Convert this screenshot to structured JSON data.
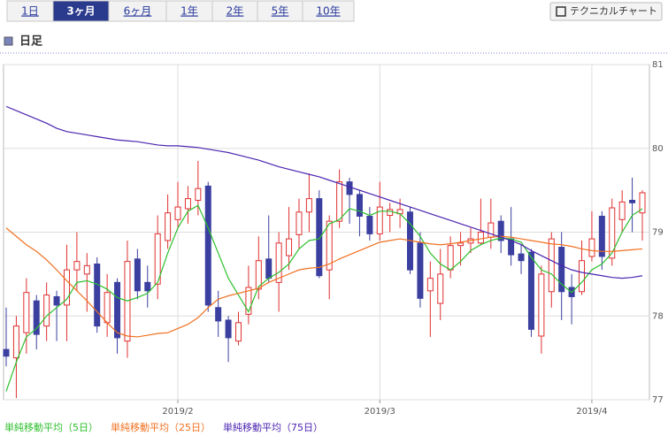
{
  "tabs": [
    "1日",
    "3ヶ月",
    "6ヶ月",
    "1年",
    "2年",
    "5年",
    "10年"
  ],
  "active_tab": 1,
  "technical_button": "テクニカルチャート",
  "section_title": "日足",
  "chart_data": {
    "type": "candlestick",
    "categories": [
      null,
      null,
      null,
      null,
      null,
      null,
      null,
      null,
      null,
      null,
      null,
      null,
      null,
      null,
      null,
      null,
      null,
      "2019/2",
      null,
      null,
      null,
      null,
      null,
      null,
      null,
      null,
      null,
      null,
      null,
      null,
      null,
      null,
      null,
      null,
      null,
      null,
      null,
      "2019/3",
      null,
      null,
      null,
      null,
      null,
      null,
      null,
      null,
      null,
      null,
      null,
      null,
      null,
      null,
      null,
      null,
      null,
      null,
      null,
      null,
      "2019/4",
      null,
      null,
      null,
      null,
      null
    ],
    "open": [
      77.6,
      77.5,
      77.8,
      78.18,
      77.88,
      78.23,
      78.13,
      78.55,
      78.5,
      78.62,
      77.92,
      78.4,
      77.7,
      78.68,
      78.4,
      78.38,
      78.9,
      79.15,
      79.28,
      79.38,
      79.55,
      78.1,
      77.95,
      77.7,
      78.02,
      78.32,
      78.68,
      78.4,
      78.72,
      78.97,
      79.24,
      79.4,
      78.55,
      79.13,
      79.6,
      79.45,
      79.19,
      78.98,
      79.2,
      79.22,
      79.24,
      78.87,
      78.3,
      78.15,
      78.55,
      78.84,
      78.87,
      78.87,
      78.94,
      79.13,
      78.92,
      78.74,
      78.76,
      77.76,
      78.29,
      78.82,
      78.34,
      78.29,
      78.71,
      79.19,
      78.69,
      79.15,
      79.38,
      79.23
    ],
    "high": [
      78.1,
      78.0,
      78.45,
      78.25,
      78.4,
      78.3,
      78.85,
      79.0,
      78.75,
      78.7,
      78.5,
      78.45,
      78.9,
      78.8,
      78.6,
      79.2,
      79.45,
      79.6,
      79.55,
      79.85,
      79.6,
      78.3,
      78.0,
      78.05,
      78.6,
      78.95,
      79.2,
      79.0,
      79.3,
      79.4,
      79.7,
      79.5,
      79.2,
      79.75,
      79.65,
      79.5,
      79.3,
      79.6,
      79.35,
      79.4,
      79.3,
      79.0,
      78.65,
      78.8,
      78.95,
      79.0,
      79.05,
      79.4,
      79.4,
      79.2,
      79.3,
      78.85,
      78.8,
      78.6,
      79.0,
      79.0,
      78.5,
      78.9,
      79.25,
      79.25,
      79.4,
      79.5,
      79.65,
      79.5
    ],
    "low": [
      77.4,
      77.02,
      77.55,
      77.6,
      77.7,
      77.7,
      77.7,
      78.3,
      78.05,
      77.8,
      77.75,
      77.55,
      77.5,
      78.2,
      78.1,
      78.2,
      78.8,
      79.05,
      79.1,
      79.2,
      78.05,
      77.75,
      77.45,
      77.65,
      77.9,
      78.2,
      78.4,
      78.05,
      78.55,
      78.8,
      79.0,
      78.45,
      78.2,
      79.05,
      79.1,
      78.95,
      78.9,
      78.9,
      79.0,
      79.05,
      78.5,
      78.1,
      77.75,
      77.95,
      78.45,
      78.6,
      78.75,
      78.85,
      78.8,
      78.75,
      78.6,
      78.5,
      77.75,
      77.55,
      78.1,
      77.95,
      77.9,
      78.25,
      78.65,
      78.55,
      78.6,
      79.0,
      79.0,
      78.9
    ],
    "close": [
      77.52,
      77.88,
      78.28,
      77.78,
      78.25,
      78.13,
      78.55,
      78.65,
      78.6,
      77.88,
      78.28,
      77.74,
      78.65,
      78.3,
      78.3,
      78.98,
      79.23,
      79.3,
      79.4,
      79.52,
      78.13,
      77.94,
      77.74,
      77.92,
      78.34,
      78.66,
      78.45,
      78.87,
      78.92,
      79.24,
      79.4,
      78.48,
      79.13,
      79.6,
      79.45,
      79.19,
      78.98,
      79.3,
      79.27,
      79.27,
      78.55,
      78.21,
      78.45,
      78.5,
      78.84,
      78.87,
      78.92,
      79.0,
      79.11,
      78.9,
      78.73,
      78.66,
      77.84,
      78.5,
      78.92,
      78.29,
      78.23,
      78.66,
      78.92,
      78.71,
      79.29,
      79.36,
      79.35,
      79.47
    ],
    "up_color": "#e03030",
    "down_color": "#3a3fa0",
    "series": [
      {
        "name": "単純移動平均（5日）",
        "color": "#2cbf2c",
        "values": [
          77.1,
          77.45,
          77.75,
          77.85,
          78.0,
          78.1,
          78.2,
          78.4,
          78.42,
          78.38,
          78.32,
          78.22,
          78.18,
          78.22,
          78.27,
          78.4,
          78.75,
          79.05,
          79.25,
          79.32,
          79.05,
          78.75,
          78.45,
          78.25,
          78.05,
          78.35,
          78.45,
          78.52,
          78.62,
          78.8,
          78.9,
          78.92,
          79.1,
          79.15,
          79.28,
          79.25,
          79.2,
          79.25,
          79.25,
          79.22,
          79.1,
          78.95,
          78.75,
          78.62,
          78.55,
          78.65,
          78.78,
          78.85,
          78.9,
          78.93,
          78.92,
          78.88,
          78.7,
          78.55,
          78.5,
          78.38,
          78.28,
          78.4,
          78.55,
          78.62,
          78.75,
          79.0,
          79.2,
          79.28
        ]
      },
      {
        "name": "単純移動平均（25日）",
        "color": "#f07020",
        "values": [
          79.05,
          78.95,
          78.85,
          78.77,
          78.67,
          78.55,
          78.42,
          78.3,
          78.18,
          78.05,
          77.92,
          77.8,
          77.76,
          77.75,
          77.77,
          77.79,
          77.8,
          77.85,
          77.9,
          77.98,
          78.1,
          78.2,
          78.24,
          78.27,
          78.3,
          78.33,
          78.4,
          78.45,
          78.5,
          78.55,
          78.57,
          78.58,
          78.62,
          78.68,
          78.73,
          78.78,
          78.83,
          78.88,
          78.9,
          78.92,
          78.9,
          78.88,
          78.86,
          78.85,
          78.86,
          78.88,
          78.9,
          78.92,
          78.94,
          78.95,
          78.94,
          78.92,
          78.9,
          78.88,
          78.86,
          78.85,
          78.83,
          78.8,
          78.78,
          78.77,
          78.77,
          78.78,
          78.79,
          78.8
        ]
      },
      {
        "name": "単純移動平均（75日）",
        "color": "#4b24b0",
        "values": [
          80.5,
          80.45,
          80.4,
          80.35,
          80.3,
          80.24,
          80.2,
          80.18,
          80.16,
          80.14,
          80.12,
          80.1,
          80.09,
          80.08,
          80.06,
          80.04,
          80.03,
          80.03,
          80.02,
          80.01,
          79.99,
          79.97,
          79.95,
          79.92,
          79.89,
          79.86,
          79.82,
          79.78,
          79.75,
          79.72,
          79.69,
          79.66,
          79.62,
          79.58,
          79.54,
          79.5,
          79.46,
          79.42,
          79.38,
          79.34,
          79.3,
          79.26,
          79.22,
          79.18,
          79.14,
          79.1,
          79.06,
          79.02,
          78.98,
          78.94,
          78.9,
          78.85,
          78.78,
          78.72,
          78.66,
          78.6,
          78.55,
          78.52,
          78.5,
          78.48,
          78.46,
          78.45,
          78.46,
          78.48
        ]
      }
    ],
    "ylim": [
      77,
      81
    ],
    "yticks": [
      77,
      78,
      79,
      80,
      81
    ],
    "grid": true
  }
}
